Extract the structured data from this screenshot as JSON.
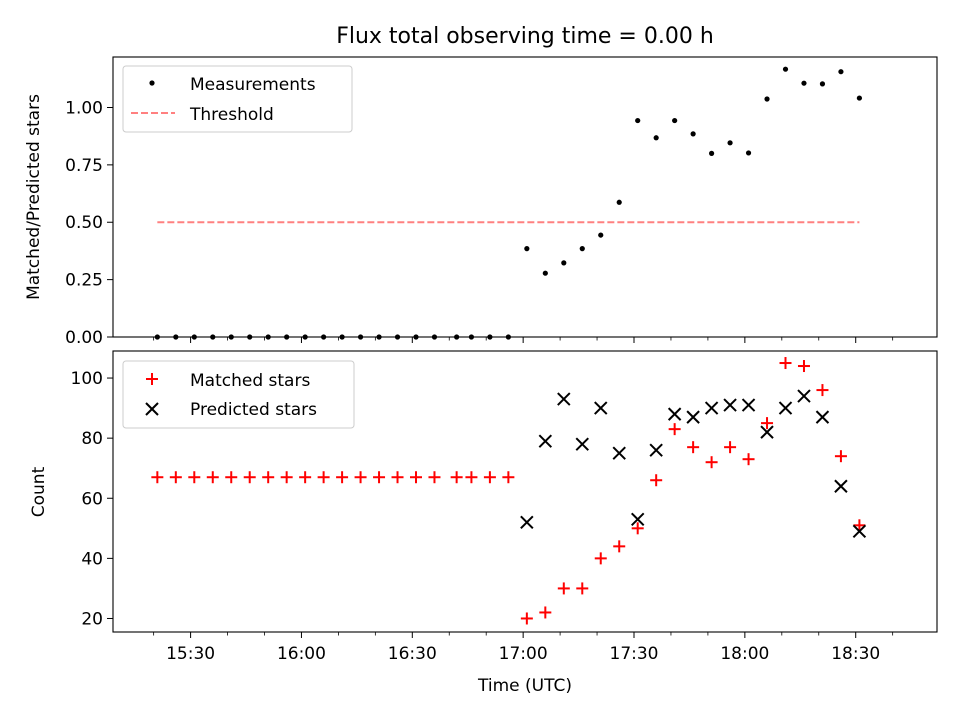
{
  "chart_data": [
    {
      "type": "scatter",
      "title": "Flux total observing time = 0.00 h",
      "xlabel": "",
      "ylabel": "Matched/Predicted stars",
      "ylim": [
        0,
        1.22
      ],
      "yticks": [
        "0.00",
        "0.25",
        "0.50",
        "0.75",
        "1.00"
      ],
      "ytick_values": [
        0,
        0.25,
        0.5,
        0.75,
        1.0
      ],
      "legend_position": "top-left",
      "series": [
        {
          "name": "Measurements",
          "marker": "dot",
          "color": "#000000",
          "points": [
            [
              "15:21",
              0.0
            ],
            [
              "15:26",
              0.0
            ],
            [
              "15:31",
              0.0
            ],
            [
              "15:36",
              0.0
            ],
            [
              "15:41",
              0.0
            ],
            [
              "15:46",
              0.0
            ],
            [
              "15:51",
              0.0
            ],
            [
              "15:56",
              0.0
            ],
            [
              "16:01",
              0.0
            ],
            [
              "16:06",
              0.0
            ],
            [
              "16:11",
              0.0
            ],
            [
              "16:16",
              0.0
            ],
            [
              "16:21",
              0.0
            ],
            [
              "16:26",
              0.0
            ],
            [
              "16:31",
              0.0
            ],
            [
              "16:36",
              0.0
            ],
            [
              "16:42",
              0.0
            ],
            [
              "16:46",
              0.0
            ],
            [
              "16:51",
              0.0
            ],
            [
              "16:56",
              0.0
            ],
            [
              "17:01",
              0.385
            ],
            [
              "17:06",
              0.278
            ],
            [
              "17:11",
              0.323
            ],
            [
              "17:16",
              0.385
            ],
            [
              "17:21",
              0.444
            ],
            [
              "17:26",
              0.587
            ],
            [
              "17:31",
              0.943
            ],
            [
              "17:36",
              0.868
            ],
            [
              "17:41",
              0.943
            ],
            [
              "17:46",
              0.885
            ],
            [
              "17:51",
              0.8
            ],
            [
              "17:56",
              0.846
            ],
            [
              "18:01",
              0.802
            ],
            [
              "18:06",
              1.037
            ],
            [
              "18:11",
              1.167
            ],
            [
              "18:16",
              1.106
            ],
            [
              "18:21",
              1.103
            ],
            [
              "18:26",
              1.156
            ],
            [
              "18:31",
              1.041
            ]
          ]
        },
        {
          "name": "Threshold",
          "marker": "dashed-line",
          "color": "#ff8080",
          "points": [
            [
              "15:21",
              0.5
            ],
            [
              "18:31",
              0.5
            ]
          ]
        }
      ]
    },
    {
      "type": "scatter",
      "title": "",
      "xlabel": "Time (UTC)",
      "ylabel": "Count",
      "ylim": [
        15.5,
        109
      ],
      "yticks": [
        "20",
        "40",
        "60",
        "80",
        "100"
      ],
      "ytick_values": [
        20,
        40,
        60,
        80,
        100
      ],
      "legend_position": "top-left",
      "series": [
        {
          "name": "Matched stars",
          "marker": "plus",
          "color": "#ff0000",
          "points": [
            [
              "15:21",
              67
            ],
            [
              "15:26",
              67
            ],
            [
              "15:31",
              67
            ],
            [
              "15:36",
              67
            ],
            [
              "15:41",
              67
            ],
            [
              "15:46",
              67
            ],
            [
              "15:51",
              67
            ],
            [
              "15:56",
              67
            ],
            [
              "16:01",
              67
            ],
            [
              "16:06",
              67
            ],
            [
              "16:11",
              67
            ],
            [
              "16:16",
              67
            ],
            [
              "16:21",
              67
            ],
            [
              "16:26",
              67
            ],
            [
              "16:31",
              67
            ],
            [
              "16:36",
              67
            ],
            [
              "16:42",
              67
            ],
            [
              "16:46",
              67
            ],
            [
              "16:51",
              67
            ],
            [
              "16:56",
              67
            ],
            [
              "17:01",
              20
            ],
            [
              "17:06",
              22
            ],
            [
              "17:11",
              30
            ],
            [
              "17:16",
              30
            ],
            [
              "17:21",
              40
            ],
            [
              "17:26",
              44
            ],
            [
              "17:31",
              50
            ],
            [
              "17:36",
              66
            ],
            [
              "17:41",
              83
            ],
            [
              "17:46",
              77
            ],
            [
              "17:51",
              72
            ],
            [
              "17:56",
              77
            ],
            [
              "18:01",
              73
            ],
            [
              "18:06",
              85
            ],
            [
              "18:11",
              105
            ],
            [
              "18:16",
              104
            ],
            [
              "18:21",
              96
            ],
            [
              "18:26",
              74
            ],
            [
              "18:31",
              51
            ]
          ]
        },
        {
          "name": "Predicted stars",
          "marker": "x",
          "color": "#000000",
          "points": [
            [
              "17:01",
              52
            ],
            [
              "17:06",
              79
            ],
            [
              "17:11",
              93
            ],
            [
              "17:16",
              78
            ],
            [
              "17:21",
              90
            ],
            [
              "17:26",
              75
            ],
            [
              "17:31",
              53
            ],
            [
              "17:36",
              76
            ],
            [
              "17:41",
              88
            ],
            [
              "17:46",
              87
            ],
            [
              "17:51",
              90
            ],
            [
              "17:56",
              91
            ],
            [
              "18:01",
              91
            ],
            [
              "18:06",
              82
            ],
            [
              "18:11",
              90
            ],
            [
              "18:16",
              94
            ],
            [
              "18:21",
              87
            ],
            [
              "18:26",
              64
            ],
            [
              "18:31",
              49
            ]
          ]
        }
      ]
    }
  ],
  "x_axis": {
    "range": [
      "15:09",
      "18:52"
    ],
    "major_ticks": [
      "15:30",
      "16:00",
      "16:30",
      "17:00",
      "17:30",
      "18:00",
      "18:30"
    ],
    "minor_ticks": [
      "15:20",
      "15:40",
      "15:50",
      "16:10",
      "16:20",
      "16:40",
      "16:50",
      "17:10",
      "17:20",
      "17:40",
      "17:50",
      "18:10",
      "18:20",
      "18:40"
    ]
  }
}
